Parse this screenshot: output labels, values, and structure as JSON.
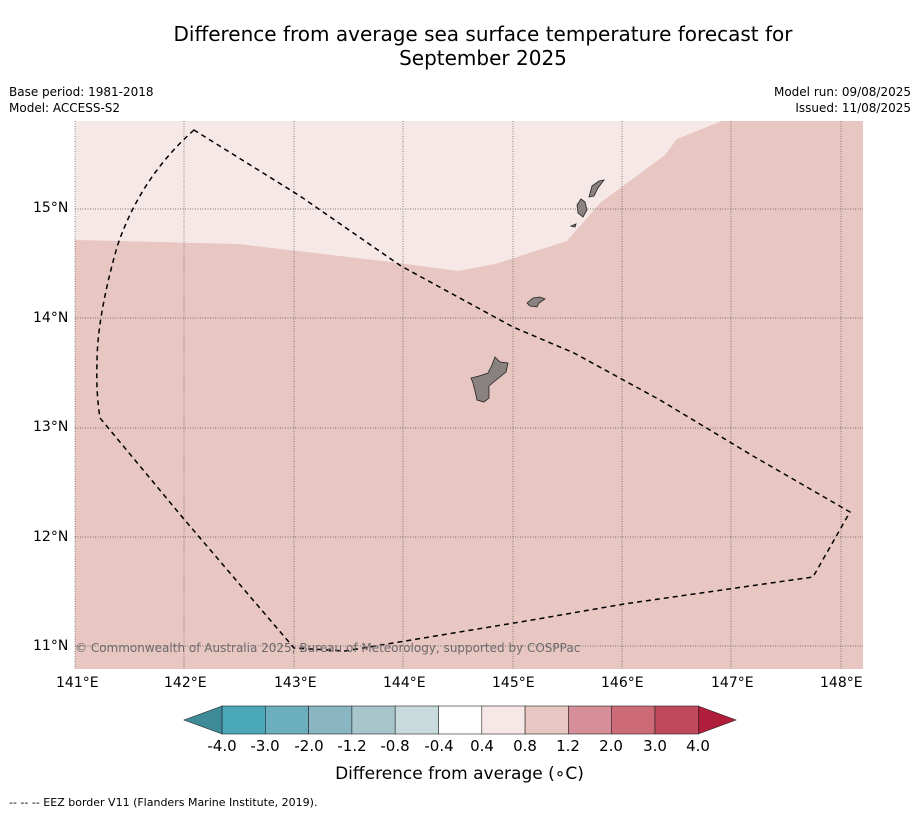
{
  "title_line1": "Difference from average sea surface temperature forecast for",
  "title_line2": "September 2025",
  "meta_left": {
    "base_period": "Base period: 1981-2018",
    "model": "Model: ACCESS-S2"
  },
  "meta_right": {
    "model_run": "Model run: 09/08/2025",
    "issued": "Issued: 11/08/2025"
  },
  "map": {
    "lat_labels": [
      "15°N",
      "14°N",
      "13°N",
      "12°N",
      "11°N"
    ],
    "lon_labels": [
      "141°E",
      "142°E",
      "143°E",
      "144°E",
      "145°E",
      "146°E",
      "147°E",
      "148°E"
    ],
    "copyright": "© Commonwealth of Australia 2025, Bureau of Meteorology, supported by COSPPac",
    "regions": [
      {
        "category": "0.4 to 0.8",
        "color": "#f5e8e6"
      },
      {
        "category": "0.8 to 1.2",
        "color": "#e8c6c1"
      }
    ],
    "land_color": "#8a8280",
    "eez_style": "dashed black"
  },
  "colorbar": {
    "label": "Difference from average (∘C)",
    "ticks": [
      "-4.0",
      "-3.0",
      "-2.0",
      "-1.2",
      "-0.8",
      "-0.4",
      "0.4",
      "0.8",
      "1.2",
      "2.0",
      "3.0",
      "4.0"
    ],
    "colors": [
      "#4ba8b8",
      "#6bafbe",
      "#89b6c2",
      "#a8c6ca",
      "#c9dadd",
      "#ffffff",
      "#f5e8e6",
      "#e8c6c1",
      "#d68f98",
      "#cc6a75",
      "#c04a5c"
    ],
    "low_extend_color": "#3f8a97",
    "high_extend_color": "#b01e3c"
  },
  "footnote": "-- -- -- EEZ border V11 (Flanders Marine Institute, 2019)."
}
